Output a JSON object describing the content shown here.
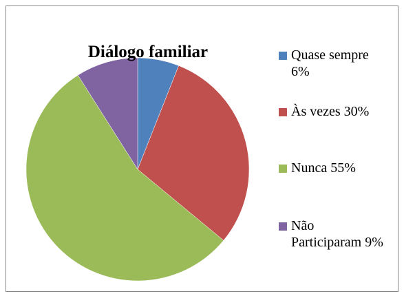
{
  "chart_data": {
    "type": "pie",
    "title": "Diálogo familiar",
    "categories": [
      "Quase sempre",
      "Às vezes",
      "Nunca",
      "Não Participaram"
    ],
    "values": [
      6,
      30,
      55,
      9
    ],
    "value_labels": [
      "6%",
      "30%",
      "55%",
      "9%"
    ],
    "colors": [
      "#4f81bd",
      "#c0504d",
      "#9bbb59",
      "#8064a2"
    ],
    "legend": "right"
  }
}
